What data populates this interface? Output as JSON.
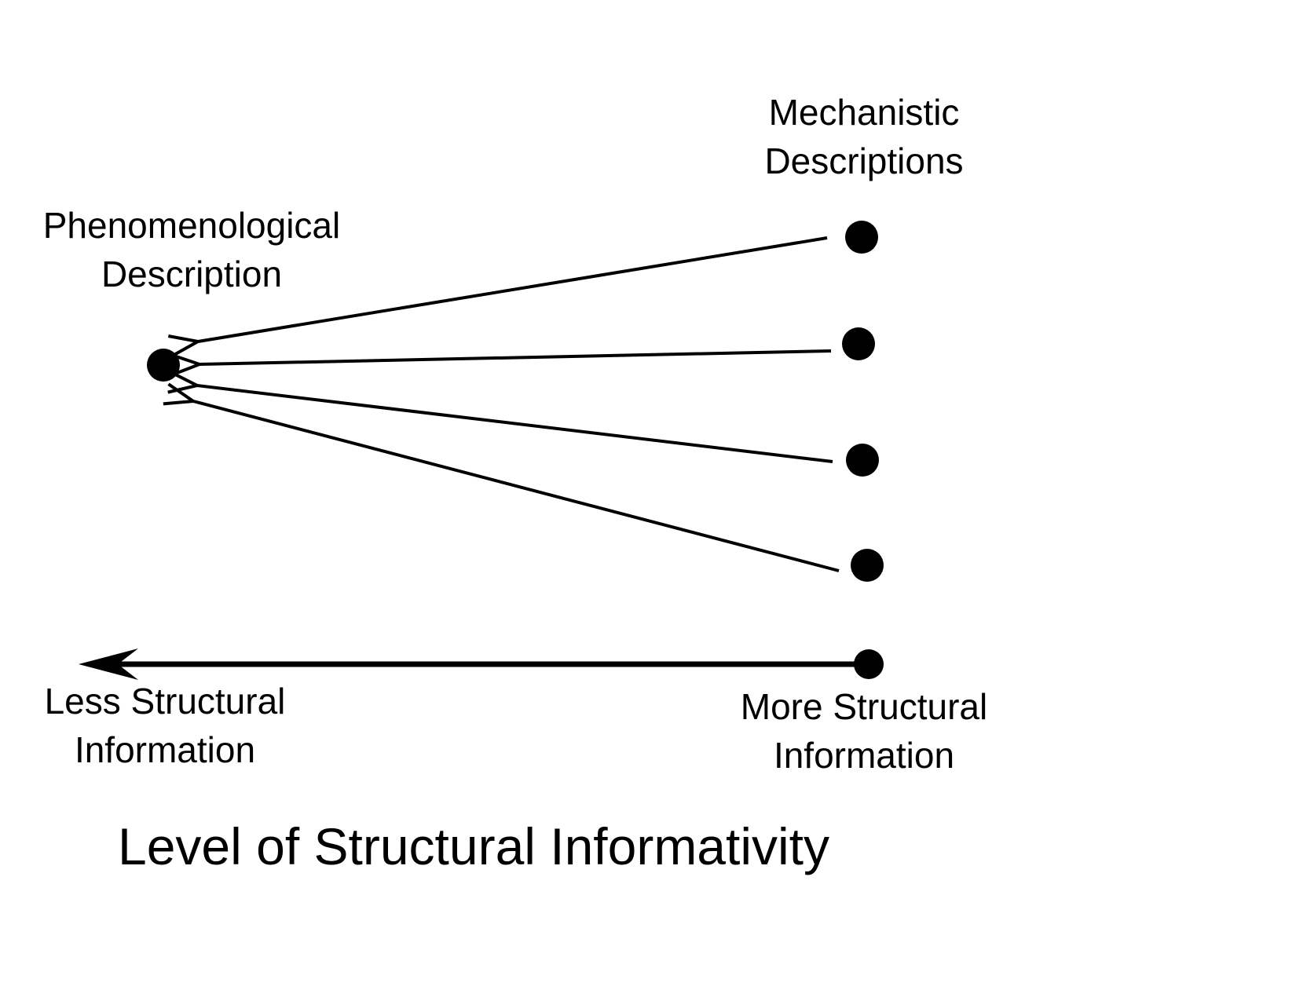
{
  "diagram": {
    "mechanistic_label": {
      "line1": "Mechanistic",
      "line2": "Descriptions"
    },
    "phenomenological_label": {
      "line1": "Phenomenological",
      "line2": "Description"
    },
    "less_label": {
      "line1": "Less Structural",
      "line2": "Information"
    },
    "more_label": {
      "line1": "More Structural",
      "line2": "Information"
    },
    "title": "Level of Structural Informativity",
    "mechanistic_node_count": 4,
    "colors": {
      "ink": "#000000",
      "background": "#ffffff"
    }
  }
}
